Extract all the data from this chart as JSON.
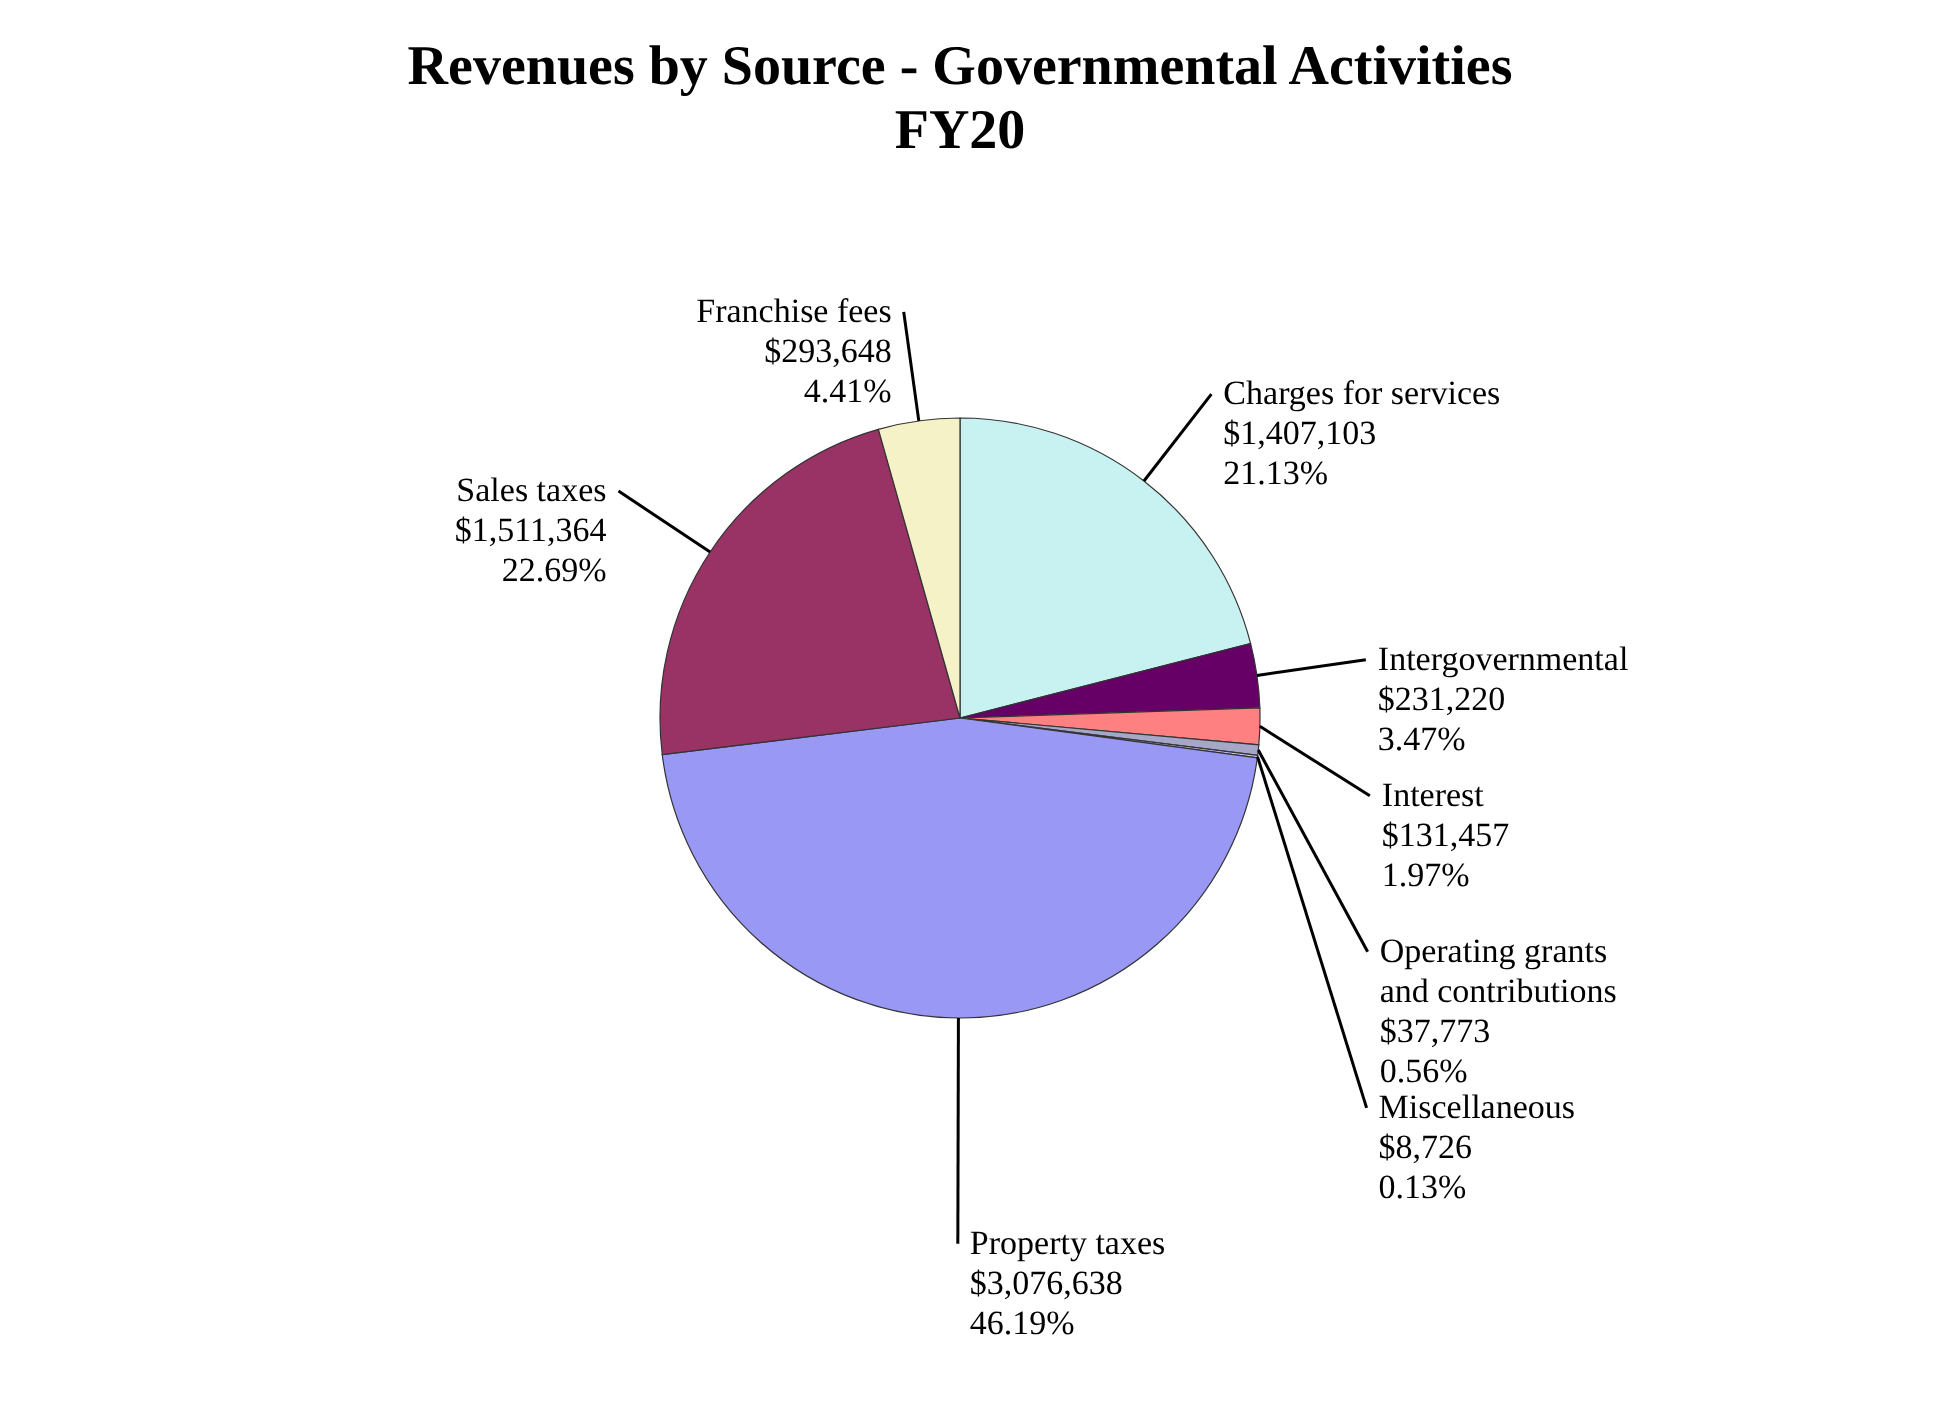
{
  "chart_data": {
    "type": "pie",
    "title": "Revenues by Source - Governmental Activities",
    "subtitle": "FY20",
    "categories": [
      "Charges for services",
      "Intergovernmental",
      "Interest",
      "Operating grants and contributions",
      "Miscellaneous",
      "Property taxes",
      "Sales taxes",
      "Franchise fees"
    ],
    "values": [
      1407103,
      231220,
      131457,
      37773,
      8726,
      3076638,
      1511364,
      293648
    ],
    "value_labels": [
      "$1,407,103\n21.13%",
      "$231,220\n3.47%",
      "$131,457\n1.97%",
      "$37,773\n0.56%",
      "$8,726\n0.13%",
      "$3,076,638\n46.19%",
      "$1,511,364\n22.69%",
      "$293,648\n4.41%"
    ],
    "colors": [
      "#c8f2f2",
      "#660066",
      "#ff8080",
      "#a6a6c8",
      "#ccccff",
      "#9999f5",
      "#993366",
      "#f5f2c8"
    ]
  }
}
